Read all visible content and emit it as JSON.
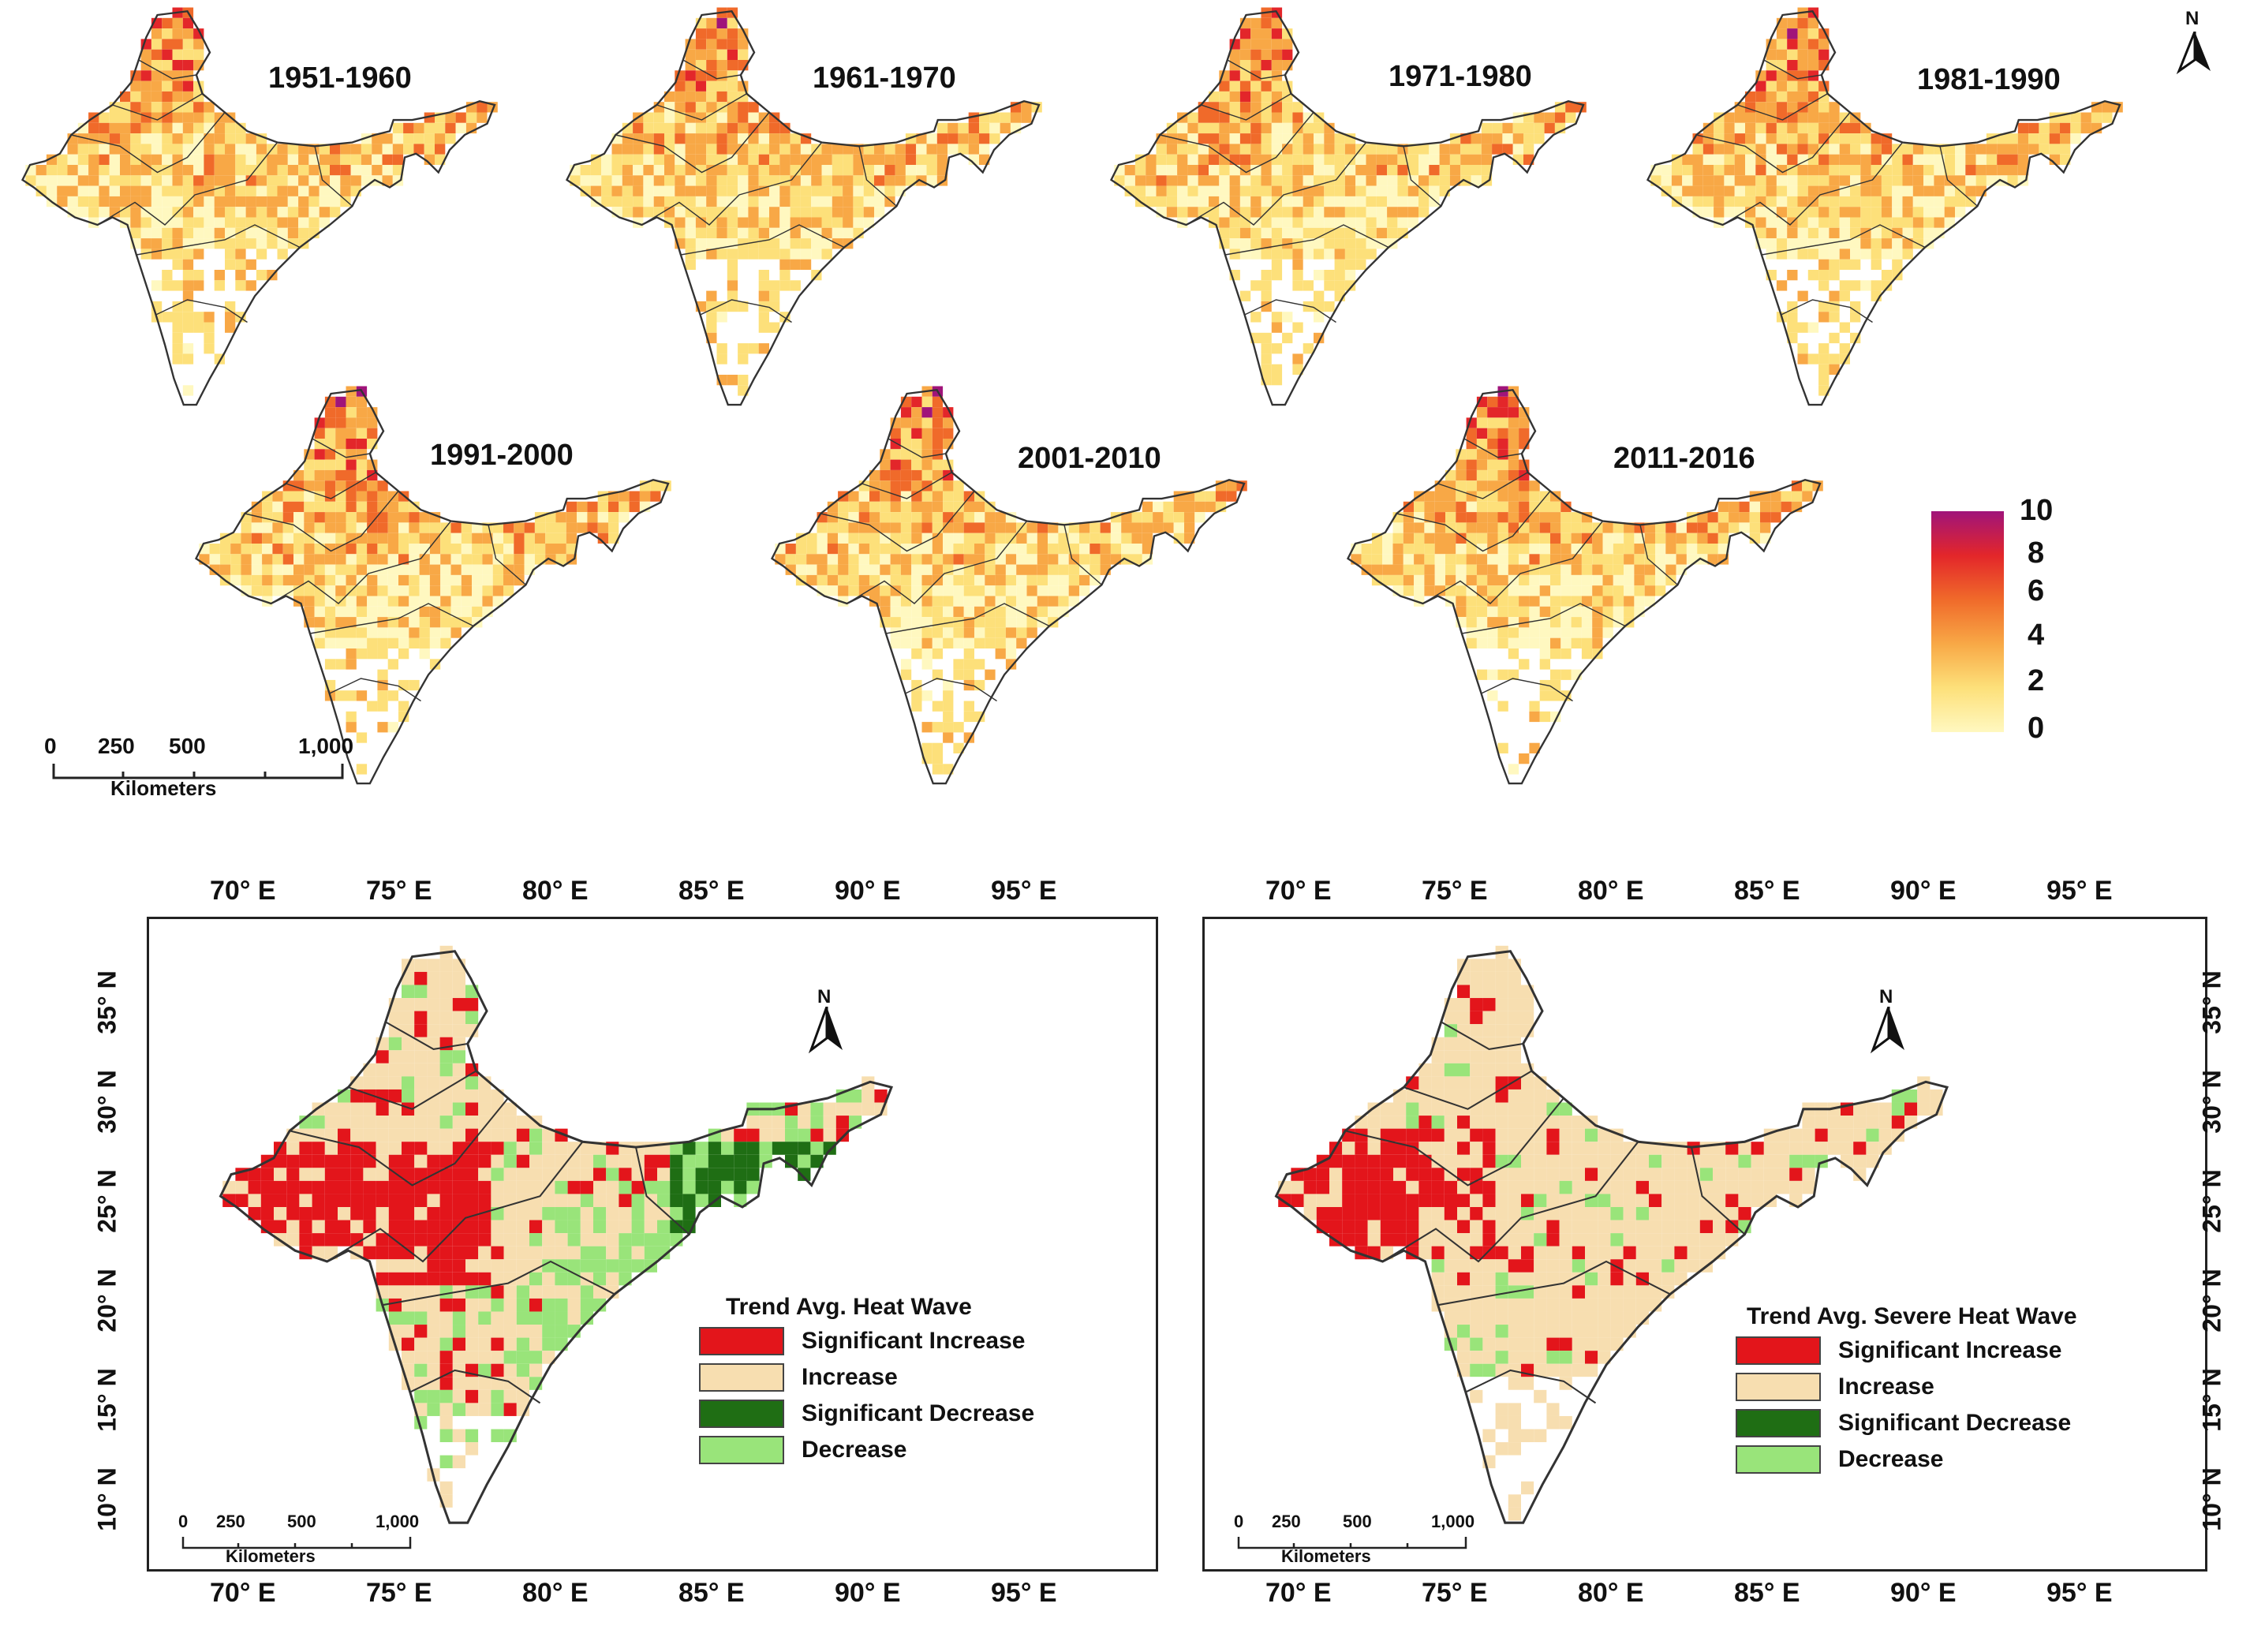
{
  "decade_maps": [
    {
      "period": "1951-1960"
    },
    {
      "period": "1961-1970"
    },
    {
      "period": "1971-1980"
    },
    {
      "period": "1981-1990"
    },
    {
      "period": "1991-2000"
    },
    {
      "period": "2001-2010"
    },
    {
      "period": "2011-2016"
    }
  ],
  "colorbar": {
    "ticks": [
      "10",
      "8",
      "6",
      "4",
      "2",
      "0"
    ],
    "colors": [
      "#fff8c0",
      "#fde07a",
      "#f8a846",
      "#f06a2a",
      "#e3262a",
      "#a0147a"
    ]
  },
  "scale_bar_top": {
    "ticks": [
      "0",
      "250",
      "500",
      "1,000"
    ],
    "unit": "Kilometers"
  },
  "trend_maps": [
    {
      "legend_title": "Trend Avg. Heat Wave",
      "scale": {
        "ticks": [
          "0",
          "250",
          "500",
          "1,000"
        ],
        "unit": "Kilometers"
      }
    },
    {
      "legend_title": "Trend Avg. Severe Heat Wave",
      "scale": {
        "ticks": [
          "0",
          "250",
          "500",
          "1,000"
        ],
        "unit": "Kilometers"
      }
    }
  ],
  "legend_items": [
    {
      "label": "Significant Increase",
      "color": "#e3151b"
    },
    {
      "label": "Increase",
      "color": "#f7deb0"
    },
    {
      "label": "Significant Decrease",
      "color": "#1f6e14"
    },
    {
      "label": "Decrease",
      "color": "#99e47a"
    }
  ],
  "lon_labels": [
    "70° E",
    "75° E",
    "80° E",
    "85° E",
    "90° E",
    "95° E"
  ],
  "lat_labels": [
    "35° N",
    "30° N",
    "25° N",
    "20° N",
    "15° N",
    "10° N"
  ],
  "north_label": "N",
  "theme": {
    "outline": "#333333",
    "no_data": "#ffffff"
  }
}
